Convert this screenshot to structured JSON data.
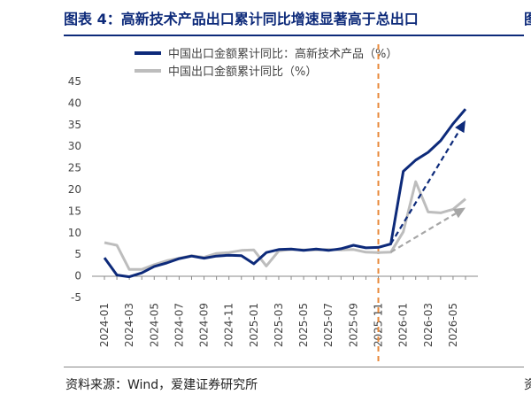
{
  "title": "图表 4：高新技术产品出口累计同比增速显著高于总出口",
  "edge_title": "图",
  "source": "资料来源：Wind，爱建证券研究所",
  "edge_source": "资",
  "colors": {
    "navy": "#0d2a7a",
    "gray": "#bdbdbd",
    "orange": "#e8893a",
    "axis": "#888888"
  },
  "chart_data": {
    "type": "line",
    "ylim": [
      -5,
      45
    ],
    "yticks": [
      -5,
      0,
      5,
      10,
      15,
      20,
      25,
      30,
      35,
      40,
      45
    ],
    "x": [
      "2024-01",
      "2024-02",
      "2024-03",
      "2024-04",
      "2024-05",
      "2024-06",
      "2024-07",
      "2024-08",
      "2024-09",
      "2024-10",
      "2024-11",
      "2024-12",
      "2025-01",
      "2025-02",
      "2025-03",
      "2025-04",
      "2025-05",
      "2025-06",
      "2025-07",
      "2025-08",
      "2025-09",
      "2025-10",
      "2025-11",
      "2025-12",
      "2026-01",
      "2026-02",
      "2026-03",
      "2026-04",
      "2026-05",
      "2026-06"
    ],
    "xtick_labels": [
      "2024-01",
      "2024-03",
      "2024-05",
      "2024-07",
      "2024-09",
      "2024-11",
      "2025-01",
      "2025-03",
      "2025-05",
      "2025-07",
      "2025-09",
      "2025-11",
      "2026-01",
      "2026-03",
      "2026-05"
    ],
    "series": [
      {
        "name": "中国出口金额累计同比：高新技术产品（%）",
        "values": [
          4.2,
          0.2,
          -0.2,
          0.7,
          2.2,
          3.0,
          4.0,
          4.6,
          4.1,
          4.6,
          4.8,
          4.7,
          2.8,
          5.4,
          6.1,
          6.2,
          5.9,
          6.2,
          5.9,
          6.3,
          7.1,
          6.5,
          6.6,
          7.4,
          24.2,
          26.8,
          28.6,
          31.3,
          35.2,
          38.6
        ]
      },
      {
        "name": "中国出口金额累计同比（%）",
        "values": [
          7.7,
          7.1,
          1.5,
          1.5,
          2.6,
          3.5,
          4.1,
          4.7,
          4.3,
          5.2,
          5.4,
          5.9,
          6.0,
          2.3,
          5.8,
          6.1,
          6.0,
          6.0,
          6.1,
          6.0,
          6.1,
          5.5,
          5.4,
          5.5,
          10.2,
          21.8,
          14.8,
          14.6,
          15.4,
          17.8
        ]
      }
    ],
    "trend_arrows": [
      {
        "series": 0,
        "from_x": "2025-12",
        "from_y": 7.4,
        "to_x": "2026-06",
        "to_y": 36.0
      },
      {
        "series": 1,
        "from_x": "2025-12",
        "from_y": 5.5,
        "to_x": "2026-06",
        "to_y": 15.8
      }
    ],
    "vline_x": "2025-11"
  }
}
